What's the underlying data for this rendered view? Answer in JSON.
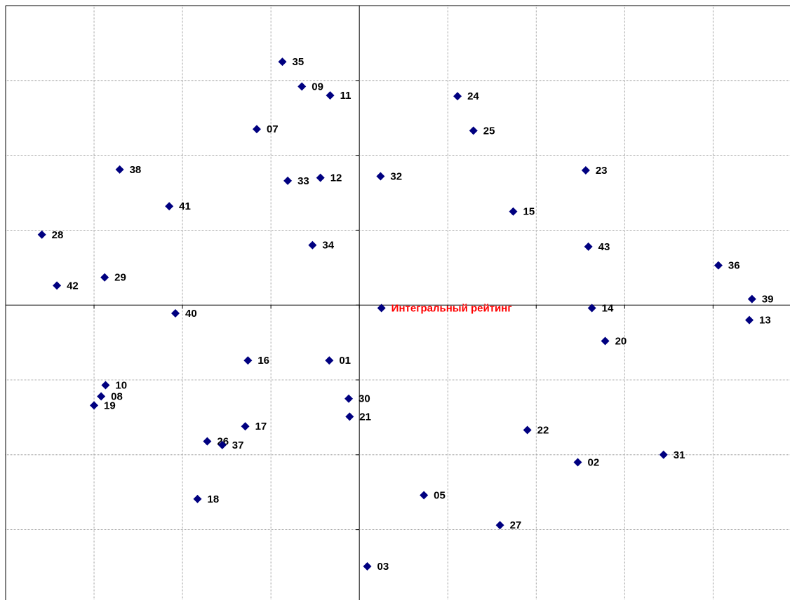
{
  "chart_data": {
    "type": "scatter",
    "xlim": [
      -4,
      4.87
    ],
    "ylim": [
      -3.94,
      4
    ],
    "xticks": [
      -4,
      -3,
      -2,
      -1,
      0,
      1,
      2,
      3,
      4
    ],
    "yticks": [
      -3,
      -2,
      -1,
      0,
      1,
      2,
      3,
      4
    ],
    "grid": true,
    "series": [
      {
        "color": "#000080",
        "label_color": "#000000",
        "labels": [
          "35",
          "09",
          "11",
          "24",
          "07",
          "25",
          "38",
          "33",
          "12",
          "32",
          "23",
          "41",
          "15",
          "28",
          "34",
          "43",
          "36",
          "29",
          "42",
          "39",
          "14",
          "40",
          "13",
          "20",
          "16",
          "01",
          "10",
          "08",
          "19",
          "30",
          "21",
          "17",
          "22",
          "26",
          "37",
          "02",
          "31",
          "18",
          "05",
          "27",
          "03"
        ],
        "x": [
          -0.87,
          -0.65,
          -0.33,
          1.11,
          -1.16,
          1.29,
          -2.71,
          -0.81,
          -0.44,
          0.24,
          2.56,
          -2.15,
          1.74,
          -3.59,
          -0.53,
          2.59,
          4.06,
          -2.88,
          -3.42,
          4.44,
          2.63,
          -2.08,
          4.41,
          2.78,
          -1.26,
          -0.34,
          -2.87,
          -2.92,
          -3.0,
          -0.12,
          -0.11,
          -1.29,
          1.9,
          -1.72,
          -1.55,
          2.47,
          3.44,
          -1.83,
          0.73,
          1.59,
          0.09
        ],
        "values": [
          3.25,
          2.92,
          2.8,
          2.79,
          2.35,
          2.33,
          1.81,
          1.66,
          1.7,
          1.72,
          1.8,
          1.32,
          1.25,
          0.94,
          0.8,
          0.78,
          0.53,
          0.37,
          0.26,
          0.08,
          -0.04,
          -0.11,
          -0.2,
          -0.48,
          -0.74,
          -0.74,
          -1.07,
          -1.22,
          -1.34,
          -1.25,
          -1.49,
          -1.62,
          -1.67,
          -1.82,
          -1.87,
          -2.1,
          -2.0,
          -2.59,
          -2.54,
          -2.94,
          -3.49
        ]
      },
      {
        "color": "#000080",
        "label_color": "#ff0000",
        "labels": [
          "Интегральный рейтинг"
        ],
        "x": [
          0.25
        ],
        "values": [
          -0.04
        ]
      }
    ]
  }
}
